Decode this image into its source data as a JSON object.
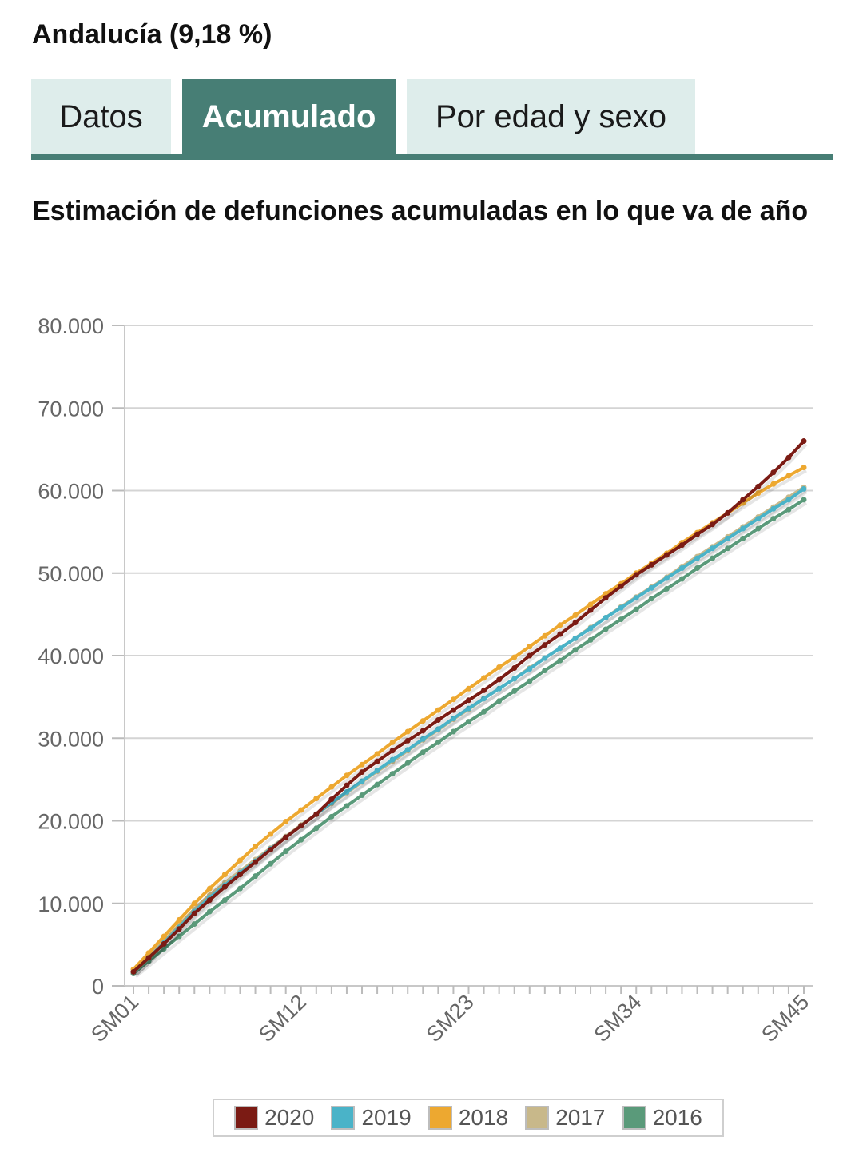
{
  "header": {
    "region_title": "Andalucía (9,18 %)"
  },
  "tabs": [
    {
      "label": "Datos",
      "active": false
    },
    {
      "label": "Acumulado",
      "active": true
    },
    {
      "label": "Por edad y sexo",
      "active": false
    }
  ],
  "chart_data": {
    "type": "line",
    "title": "Estimación de defunciones acumuladas en lo que va de año",
    "xlabel": "",
    "ylabel": "",
    "ylim": [
      0,
      80000
    ],
    "y_ticks": [
      0,
      10000,
      20000,
      30000,
      40000,
      50000,
      60000,
      70000,
      80000
    ],
    "y_tick_labels": [
      "0",
      "10.000",
      "20.000",
      "30.000",
      "40.000",
      "50.000",
      "60.000",
      "70.000",
      "80.000"
    ],
    "x_tick_labels": [
      "SM01",
      "SM12",
      "SM23",
      "SM34",
      "SM45"
    ],
    "x_start_week": 1,
    "x_end_week": 45,
    "grid": true,
    "legend_position": "bottom-center",
    "series": [
      {
        "name": "2016",
        "color": "#5a9a7a",
        "values": [
          1500,
          3000,
          4500,
          6000,
          7500,
          9000,
          10400,
          11800,
          13300,
          14800,
          16300,
          17700,
          19100,
          20500,
          21800,
          23100,
          24400,
          25700,
          27000,
          28300,
          29500,
          30800,
          32000,
          33200,
          34500,
          35700,
          36900,
          38200,
          39400,
          40700,
          41900,
          43200,
          44400,
          45600,
          46900,
          48100,
          49300,
          50600,
          51800,
          53000,
          54200,
          55400,
          56600,
          57700,
          58900
        ]
      },
      {
        "name": "2017",
        "color": "#c8b88a",
        "values": [
          1700,
          3500,
          5400,
          7400,
          9300,
          11000,
          12500,
          13900,
          15300,
          16700,
          18100,
          19500,
          20800,
          22100,
          23400,
          24700,
          26000,
          27200,
          28500,
          29800,
          31000,
          32300,
          33500,
          34800,
          36000,
          37200,
          38500,
          39700,
          40900,
          42100,
          43400,
          44600,
          45900,
          47100,
          48300,
          49500,
          50800,
          52000,
          53200,
          54400,
          55600,
          56800,
          58000,
          59200,
          60400
        ]
      },
      {
        "name": "2018",
        "color": "#eda830",
        "values": [
          2000,
          4000,
          6000,
          8000,
          10000,
          11800,
          13500,
          15200,
          16900,
          18400,
          19900,
          21300,
          22700,
          24100,
          25500,
          26800,
          28100,
          29500,
          30800,
          32100,
          33400,
          34700,
          36000,
          37300,
          38600,
          39800,
          41100,
          42400,
          43700,
          44900,
          46200,
          47500,
          48700,
          50000,
          51200,
          52400,
          53700,
          54900,
          56100,
          57300,
          58500,
          59700,
          60800,
          61800,
          62800
        ]
      },
      {
        "name": "2019",
        "color": "#4ab3c8",
        "values": [
          1700,
          3400,
          5200,
          7100,
          9000,
          10700,
          12200,
          13700,
          15100,
          16600,
          18000,
          19400,
          20800,
          22200,
          23500,
          24800,
          26100,
          27400,
          28600,
          29900,
          31100,
          32400,
          33600,
          34800,
          36000,
          37200,
          38400,
          39700,
          40900,
          42100,
          43300,
          44600,
          45800,
          47000,
          48200,
          49400,
          50600,
          51800,
          53000,
          54200,
          55400,
          56600,
          57800,
          58900,
          60200
        ]
      },
      {
        "name": "2020",
        "color": "#7b1b14",
        "values": [
          1700,
          3400,
          5100,
          6900,
          8800,
          10400,
          12000,
          13500,
          15000,
          16500,
          18000,
          19400,
          20800,
          22600,
          24300,
          25900,
          27200,
          28500,
          29700,
          30900,
          32200,
          33400,
          34600,
          35800,
          37100,
          38500,
          40000,
          41300,
          42600,
          44000,
          45500,
          47000,
          48400,
          49800,
          51000,
          52200,
          53400,
          54700,
          55900,
          57300,
          58900,
          60500,
          62200,
          64000,
          66000
        ]
      }
    ]
  },
  "legend": {
    "items": [
      {
        "label": "2020",
        "color": "#7b1b14"
      },
      {
        "label": "2019",
        "color": "#4ab3c8"
      },
      {
        "label": "2018",
        "color": "#eda830"
      },
      {
        "label": "2017",
        "color": "#c8b88a"
      },
      {
        "label": "2016",
        "color": "#5a9a7a"
      }
    ]
  }
}
